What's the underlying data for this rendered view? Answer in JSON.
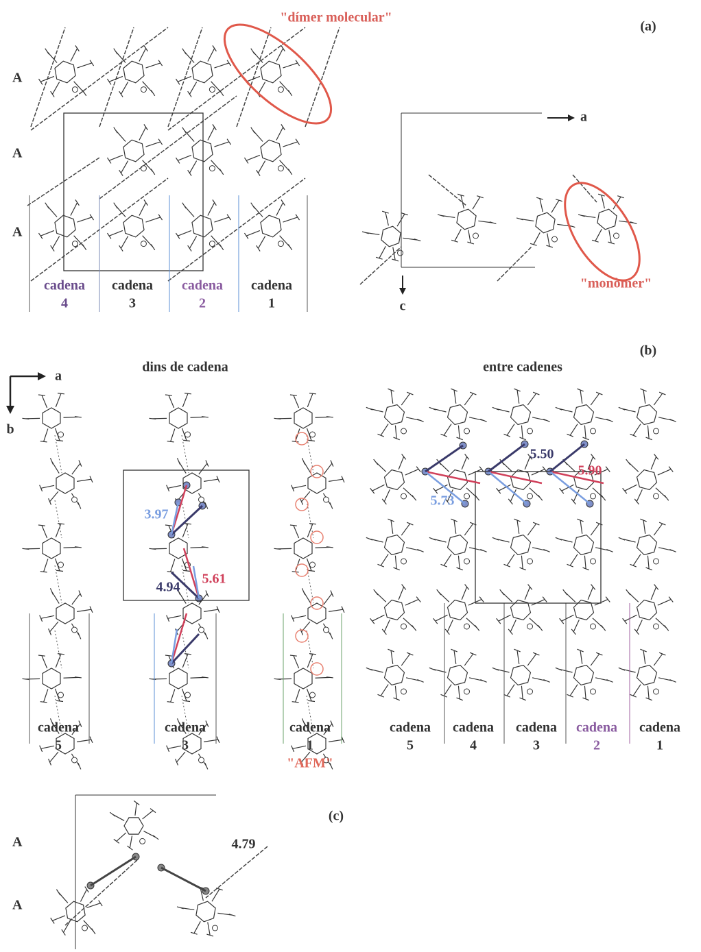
{
  "panel_a": {
    "label": "(a)",
    "annotation_dimer": "\"dímer molecular\"",
    "annotation_monomer": "\"monòmer\"",
    "row_labels": [
      "A",
      "A",
      "A"
    ],
    "chains": [
      {
        "name": "cadena",
        "number": "4"
      },
      {
        "name": "cadena",
        "number": "3"
      },
      {
        "name": "cadena",
        "number": "2"
      },
      {
        "name": "cadena",
        "number": "1"
      }
    ],
    "axis_a": "a",
    "axis_c": "c"
  },
  "panel_b": {
    "label": "(b)",
    "left_title": "dins de cadena",
    "right_title": "entre cadenes",
    "axis_a": "a",
    "axis_b": "b",
    "left_chains": [
      {
        "name": "cadena",
        "number": "5"
      },
      {
        "name": "cadena",
        "number": "3"
      },
      {
        "name": "cadena",
        "number": "1"
      }
    ],
    "afm": "\"AFM\"",
    "distances_within": [
      "3.97",
      "4.94",
      "5.61"
    ],
    "right_chains": [
      {
        "name": "cadena",
        "number": "5"
      },
      {
        "name": "cadena",
        "number": "4"
      },
      {
        "name": "cadena",
        "number": "3"
      },
      {
        "name": "cadena",
        "number": "2"
      },
      {
        "name": "cadena",
        "number": "1"
      }
    ],
    "distances_between": [
      "5.50",
      "5.73",
      "5.90"
    ]
  },
  "panel_c": {
    "label": "(c)",
    "row_labels": [
      "A",
      "A"
    ],
    "distance": "4.79"
  }
}
